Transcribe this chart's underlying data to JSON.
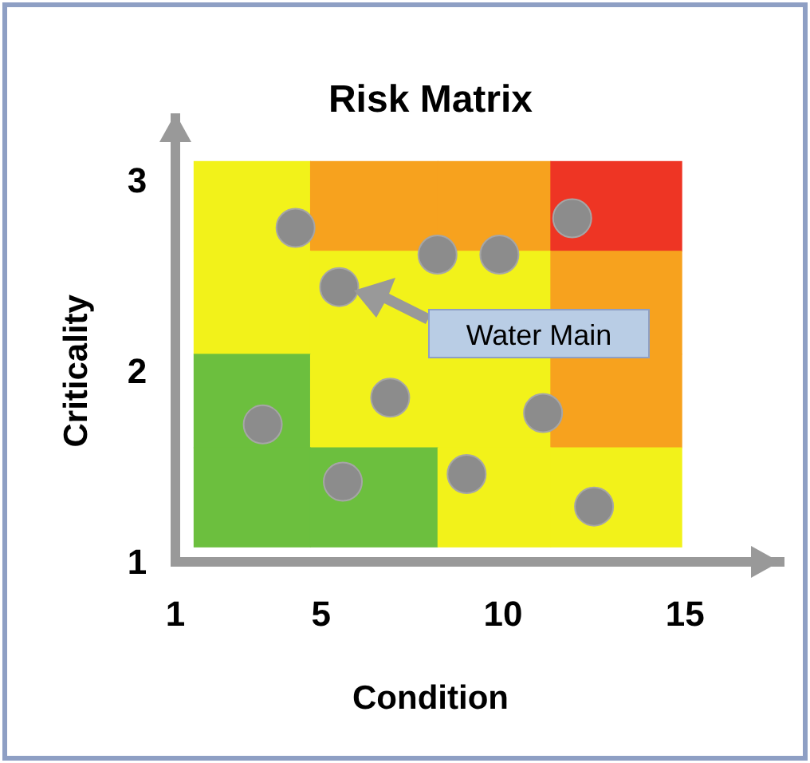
{
  "chart_data": {
    "type": "scatter",
    "title": "Risk Matrix",
    "xlabel": "Condition",
    "ylabel": "Criticality",
    "xlim": [
      1,
      17.6
    ],
    "ylim": [
      1,
      3.35
    ],
    "xticks": [
      1,
      5,
      10,
      15
    ],
    "yticks": [
      1,
      2,
      3
    ],
    "grid": false,
    "marker": "circle",
    "series": [
      {
        "color": "#8c8c8c",
        "x": [
          4.3,
          5.5,
          8.2,
          9.9,
          11.9,
          6.9,
          3.4,
          5.6,
          9.0,
          11.1,
          12.5
        ],
        "values": [
          2.75,
          2.44,
          2.61,
          2.61,
          2.8,
          1.86,
          1.72,
          1.42,
          1.46,
          1.78,
          1.29
        ]
      }
    ],
    "annotations": [
      "Water Main"
    ]
  }
}
